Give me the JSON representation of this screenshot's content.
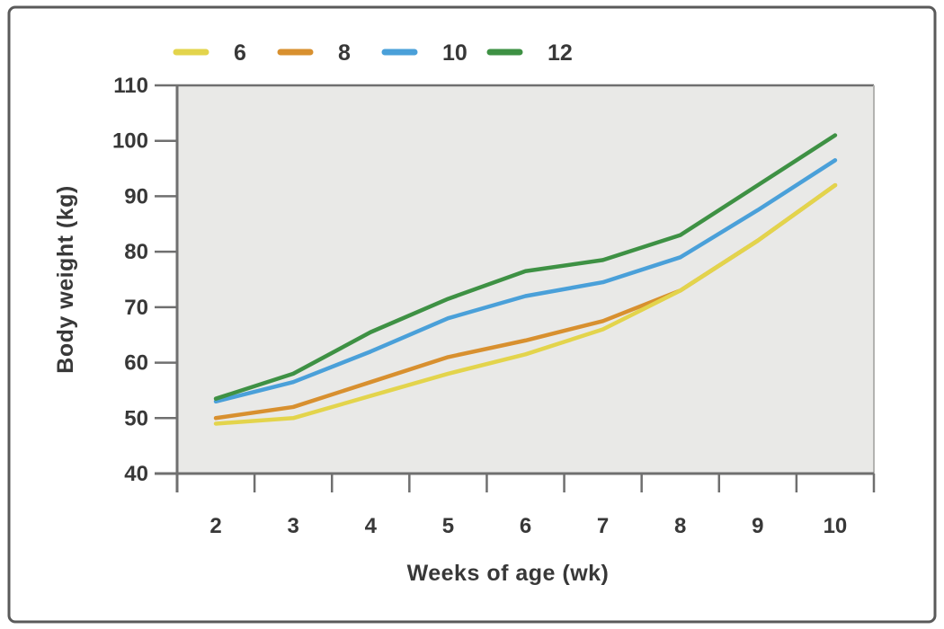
{
  "figure": {
    "border_color": "#5a5a5a",
    "plot_bg": "#e9e9e7",
    "axis_color": "#6f6f6f",
    "text_color": "#383838"
  },
  "legend": {
    "items": [
      {
        "label": "6",
        "color": "#e3d44c"
      },
      {
        "label": "8",
        "color": "#d8902f"
      },
      {
        "label": "10",
        "color": "#4aa0d9"
      },
      {
        "label": "12",
        "color": "#3e9144"
      }
    ]
  },
  "chart_data": {
    "type": "line",
    "title": "",
    "xlabel": "Weeks of age (wk)",
    "ylabel": "Body weight (kg)",
    "categories": [
      "2",
      "3",
      "4",
      "5",
      "6",
      "7",
      "8",
      "9",
      "10"
    ],
    "x": [
      2,
      3,
      4,
      5,
      6,
      7,
      8,
      9,
      10
    ],
    "series": [
      {
        "name": "6",
        "color": "#e3d44c",
        "values": [
          49,
          50,
          54,
          58,
          61.5,
          66,
          73,
          82,
          92
        ]
      },
      {
        "name": "8",
        "color": "#d8902f",
        "values": [
          50,
          52,
          56.5,
          61,
          64,
          67.5,
          73,
          82,
          92
        ]
      },
      {
        "name": "10",
        "color": "#4aa0d9",
        "values": [
          53,
          56.5,
          62,
          68,
          72,
          74.5,
          79,
          87.5,
          96.5
        ]
      },
      {
        "name": "12",
        "color": "#3e9144",
        "values": [
          53.5,
          58,
          65.5,
          71.5,
          76.5,
          78.5,
          83,
          92,
          101
        ]
      }
    ],
    "ylim": [
      40,
      110
    ],
    "yticks": [
      40,
      50,
      60,
      70,
      80,
      90,
      100,
      110
    ],
    "legend_position": "top",
    "grid": false
  }
}
